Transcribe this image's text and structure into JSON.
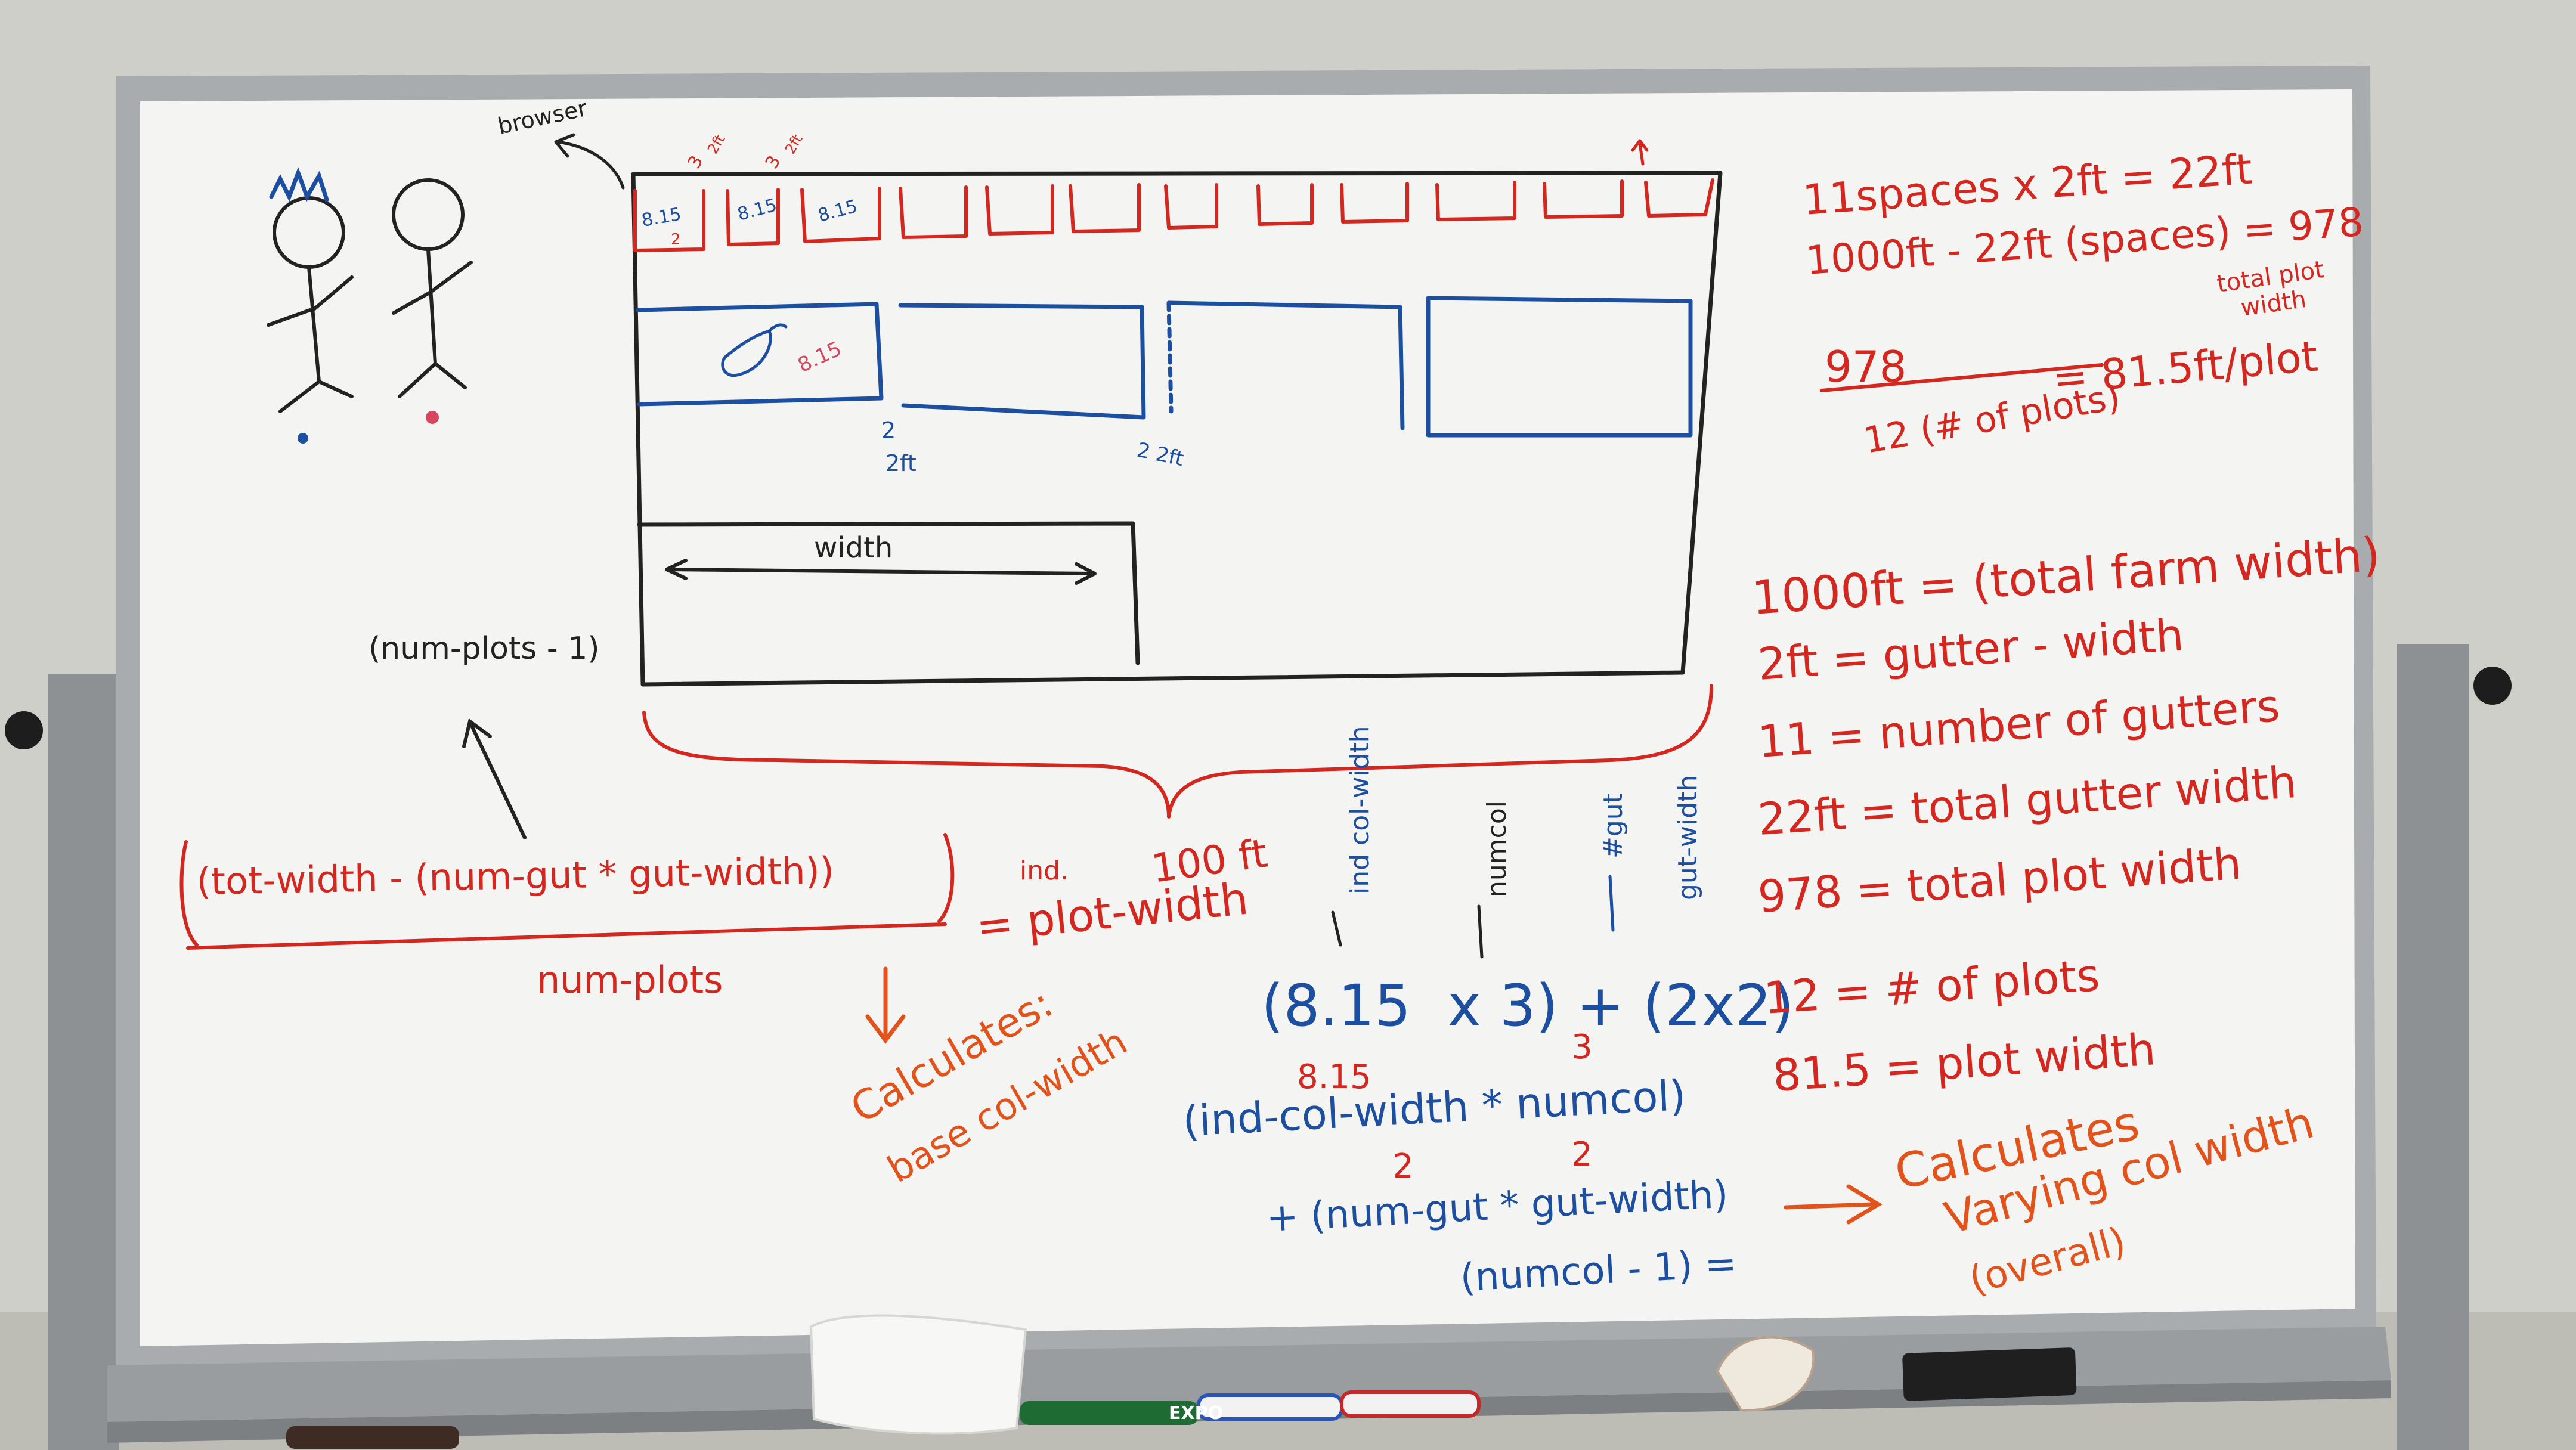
{
  "colors": {
    "wall": "#cfcfc9",
    "board": "#f4f4f2",
    "frame": "#a9acae",
    "ink_black": "#222222",
    "ink_red": "#d4271f",
    "ink_blue": "#1d4fa0",
    "ink_orange": "#e2531c",
    "ink_pink": "#d8455f"
  },
  "board": {
    "sketch": {
      "browser_label": "browser",
      "up_arrow_note": "↑",
      "tiny_top_labels": [
        "8.15",
        "2",
        "8.15",
        "8.15",
        "3",
        "2ft",
        "3",
        "2ft"
      ],
      "plot_label": "8.15",
      "gutter_label_1_a": "2",
      "gutter_label_1_b": "2ft",
      "gutter_label_2": "2 2ft",
      "width_label": "width"
    },
    "left_formula": {
      "numplots_minus_one": "(num-plots - 1)",
      "numerator": "(tot-width - (num-gut * gut-width))",
      "denominator": "num-plots",
      "ind_label": "ind.",
      "equals_plot_width": "= plot-width",
      "brace_label": "100 ft",
      "calc_note_line1": "Calculates:",
      "calc_note_line2": "base col-width"
    },
    "blue_formula": {
      "vert_ind_col_width": "ind col-width",
      "vert_numcol": "numcol",
      "vert_num_gut": "#gut",
      "vert_gut_width": "gut-width",
      "example": "(8.15  x 3) + (2x2)",
      "red_815": "8.15",
      "red_3": "3",
      "red_2a": "2",
      "red_2b": "2",
      "line1": "(ind-col-width * numcol)",
      "line2": "+ (num-gut * gut-width)",
      "line3": "(numcol - 1) =",
      "arrow": "→",
      "calc_line1": "Calculates",
      "calc_line2": "Varying col width",
      "calc_line3": "(overall)"
    },
    "right_notes": {
      "top": [
        "11spaces x 2ft = 22ft",
        "1000ft - 22ft (spaces) = 978",
        "total plot",
        "width"
      ],
      "division_numerator": "978",
      "division_denominator": "12 (# of plots)",
      "division_result": "= 81.5ft/plot",
      "list": [
        "1000ft = (total farm width)",
        "2ft = gutter - width",
        "11 = number of gutters",
        "22ft = total gutter width",
        "978 = total plot width",
        "12 = # of plots",
        "81.5 = plot width"
      ]
    },
    "tray": {
      "marker_brand": "EXPO"
    }
  }
}
